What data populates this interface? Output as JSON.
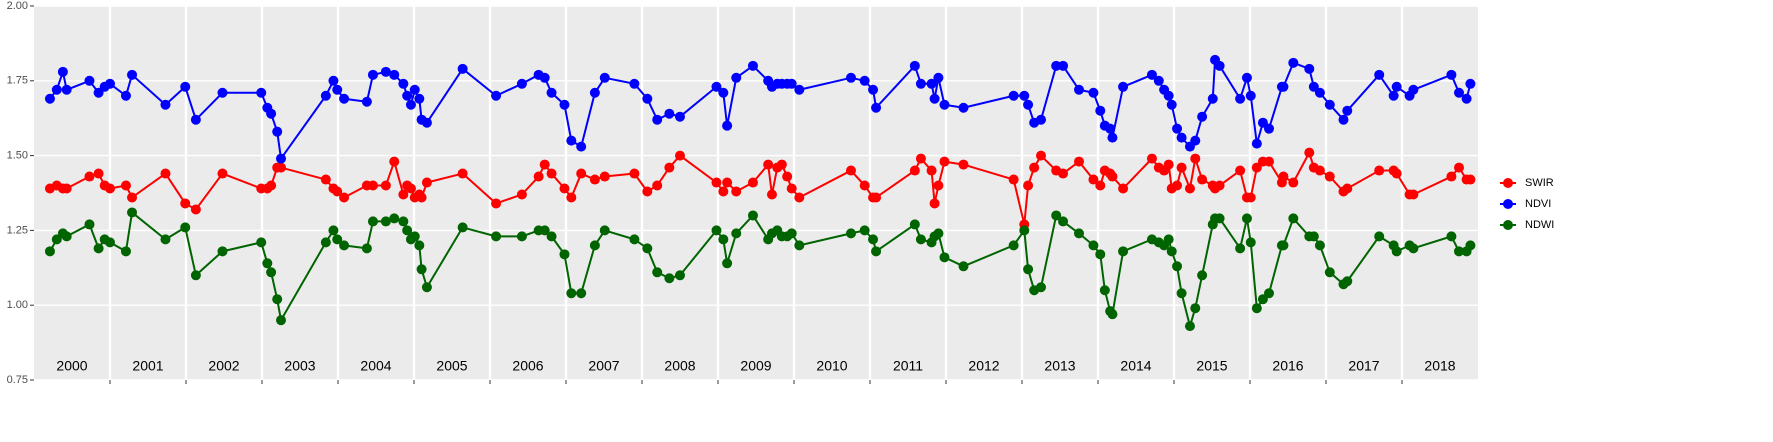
{
  "chart_data": {
    "type": "line",
    "x": [
      2000.21,
      2000.3,
      2000.38,
      2000.43,
      2000.73,
      2000.85,
      2000.93,
      2001.0,
      2001.21,
      2001.29,
      2001.73,
      2001.99,
      2002.13,
      2002.48,
      2002.99,
      2003.07,
      2003.12,
      2003.2,
      2003.25,
      2003.84,
      2003.94,
      2003.99,
      2004.08,
      2004.38,
      2004.46,
      2004.63,
      2004.74,
      2004.86,
      2004.91,
      2004.96,
      2005.01,
      2005.07,
      2005.1,
      2005.17,
      2005.64,
      2006.08,
      2006.42,
      2006.64,
      2006.72,
      2006.81,
      2006.98,
      2007.07,
      2007.2,
      2007.38,
      2007.51,
      2007.9,
      2008.07,
      2008.2,
      2008.36,
      2008.5,
      2008.98,
      2009.07,
      2009.12,
      2009.24,
      2009.46,
      2009.66,
      2009.71,
      2009.78,
      2009.84,
      2009.91,
      2009.97,
      2010.07,
      2010.75,
      2010.93,
      2011.04,
      2011.08,
      2011.59,
      2011.67,
      2011.81,
      2011.85,
      2011.9,
      2011.98,
      2012.23,
      2012.89,
      2013.03,
      2013.08,
      2013.16,
      2013.25,
      2013.45,
      2013.54,
      2013.75,
      2013.94,
      2014.03,
      2014.09,
      2014.16,
      2014.19,
      2014.33,
      2014.71,
      2014.8,
      2014.87,
      2014.93,
      2014.97,
      2015.04,
      2015.1,
      2015.21,
      2015.28,
      2015.37,
      2015.51,
      2015.54,
      2015.6,
      2015.87,
      2015.96,
      2016.01,
      2016.09,
      2016.17,
      2016.25,
      2016.42,
      2016.44,
      2016.57,
      2016.78,
      2016.84,
      2016.92,
      2017.05,
      2017.23,
      2017.28,
      2017.7,
      2017.89,
      2017.93,
      2018.1,
      2018.15,
      2018.65,
      2018.75,
      2018.85,
      2018.9
    ],
    "series": [
      {
        "name": "SWIR",
        "color": "#ff0000",
        "values": [
          1.39,
          1.4,
          1.39,
          1.39,
          1.43,
          1.44,
          1.4,
          1.39,
          1.4,
          1.36,
          1.44,
          1.34,
          1.32,
          1.44,
          1.39,
          1.39,
          1.4,
          1.46,
          1.46,
          1.42,
          1.39,
          1.38,
          1.36,
          1.4,
          1.4,
          1.4,
          1.48,
          1.37,
          1.4,
          1.39,
          1.36,
          1.37,
          1.36,
          1.41,
          1.44,
          1.34,
          1.37,
          1.43,
          1.47,
          1.44,
          1.39,
          1.36,
          1.44,
          1.42,
          1.43,
          1.44,
          1.38,
          1.4,
          1.46,
          1.5,
          1.41,
          1.38,
          1.41,
          1.38,
          1.41,
          1.47,
          1.37,
          1.46,
          1.47,
          1.43,
          1.39,
          1.36,
          1.45,
          1.4,
          1.36,
          1.36,
          1.45,
          1.49,
          1.45,
          1.34,
          1.4,
          1.48,
          1.47,
          1.42,
          1.27,
          1.4,
          1.46,
          1.5,
          1.45,
          1.44,
          1.48,
          1.42,
          1.4,
          1.45,
          1.44,
          1.43,
          1.39,
          1.49,
          1.46,
          1.45,
          1.47,
          1.39,
          1.4,
          1.46,
          1.39,
          1.49,
          1.42,
          1.4,
          1.39,
          1.4,
          1.45,
          1.36,
          1.36,
          1.46,
          1.48,
          1.48,
          1.41,
          1.43,
          1.41,
          1.51,
          1.46,
          1.45,
          1.43,
          1.38,
          1.39,
          1.45,
          1.45,
          1.44,
          1.37,
          1.37,
          1.43,
          1.46,
          1.42,
          1.42
        ]
      },
      {
        "name": "NDVI",
        "color": "#0000ff",
        "values": [
          1.69,
          1.72,
          1.78,
          1.72,
          1.75,
          1.71,
          1.73,
          1.74,
          1.7,
          1.77,
          1.67,
          1.73,
          1.62,
          1.71,
          1.71,
          1.66,
          1.64,
          1.58,
          1.49,
          1.7,
          1.75,
          1.72,
          1.69,
          1.68,
          1.77,
          1.78,
          1.77,
          1.74,
          1.7,
          1.67,
          1.72,
          1.69,
          1.62,
          1.61,
          1.79,
          1.7,
          1.74,
          1.77,
          1.76,
          1.71,
          1.67,
          1.55,
          1.53,
          1.71,
          1.76,
          1.74,
          1.69,
          1.62,
          1.64,
          1.63,
          1.73,
          1.71,
          1.6,
          1.76,
          1.8,
          1.75,
          1.73,
          1.74,
          1.74,
          1.74,
          1.74,
          1.72,
          1.76,
          1.75,
          1.72,
          1.66,
          1.8,
          1.74,
          1.74,
          1.69,
          1.76,
          1.67,
          1.66,
          1.7,
          1.7,
          1.67,
          1.61,
          1.62,
          1.8,
          1.8,
          1.72,
          1.71,
          1.65,
          1.6,
          1.59,
          1.56,
          1.73,
          1.77,
          1.75,
          1.72,
          1.7,
          1.67,
          1.59,
          1.56,
          1.53,
          1.55,
          1.63,
          1.69,
          1.82,
          1.8,
          1.69,
          1.76,
          1.7,
          1.54,
          1.61,
          1.59,
          1.73,
          1.73,
          1.81,
          1.79,
          1.73,
          1.71,
          1.67,
          1.62,
          1.65,
          1.77,
          1.7,
          1.73,
          1.7,
          1.72,
          1.77,
          1.71,
          1.69,
          1.74
        ]
      },
      {
        "name": "NDWI",
        "color": "#006400",
        "values": [
          1.18,
          1.22,
          1.24,
          1.23,
          1.27,
          1.19,
          1.22,
          1.21,
          1.18,
          1.31,
          1.22,
          1.26,
          1.1,
          1.18,
          1.21,
          1.14,
          1.11,
          1.02,
          0.95,
          1.21,
          1.25,
          1.22,
          1.2,
          1.19,
          1.28,
          1.28,
          1.29,
          1.28,
          1.25,
          1.22,
          1.23,
          1.2,
          1.12,
          1.06,
          1.26,
          1.23,
          1.23,
          1.25,
          1.25,
          1.23,
          1.17,
          1.04,
          1.04,
          1.2,
          1.25,
          1.22,
          1.19,
          1.11,
          1.09,
          1.1,
          1.25,
          1.22,
          1.14,
          1.24,
          1.3,
          1.22,
          1.24,
          1.25,
          1.23,
          1.23,
          1.24,
          1.2,
          1.24,
          1.25,
          1.22,
          1.18,
          1.27,
          1.22,
          1.21,
          1.23,
          1.24,
          1.16,
          1.13,
          1.2,
          1.25,
          1.12,
          1.05,
          1.06,
          1.3,
          1.28,
          1.24,
          1.2,
          1.17,
          1.05,
          0.98,
          0.97,
          1.18,
          1.22,
          1.21,
          1.2,
          1.22,
          1.18,
          1.13,
          1.04,
          0.93,
          0.99,
          1.1,
          1.27,
          1.29,
          1.29,
          1.19,
          1.29,
          1.21,
          0.99,
          1.02,
          1.04,
          1.2,
          1.2,
          1.29,
          1.23,
          1.23,
          1.2,
          1.11,
          1.07,
          1.08,
          1.23,
          1.2,
          1.18,
          1.2,
          1.19,
          1.23,
          1.18,
          1.18,
          1.2
        ]
      }
    ],
    "xlim": [
      2000,
      2019
    ],
    "xticks": [
      2001,
      2002,
      2003,
      2004,
      2005,
      2006,
      2007,
      2008,
      2009,
      2010,
      2011,
      2012,
      2013,
      2014,
      2015,
      2016,
      2017,
      2018
    ],
    "year_labels": [
      "2000",
      "2001",
      "2002",
      "2003",
      "2004",
      "2005",
      "2006",
      "2007",
      "2008",
      "2009",
      "2010",
      "2011",
      "2012",
      "2013",
      "2014",
      "2015",
      "2016",
      "2017",
      "2018"
    ],
    "ylim": [
      0.75,
      2.0
    ],
    "yticks": [
      {
        "value": 0.75,
        "label": "0.75"
      },
      {
        "value": 1.0,
        "label": "1.00"
      },
      {
        "value": 1.25,
        "label": "1.25"
      },
      {
        "value": 1.5,
        "label": "1.50"
      },
      {
        "value": 1.75,
        "label": "1.75"
      },
      {
        "value": 2.0,
        "label": "2.00"
      }
    ],
    "grid": true,
    "legend": "right"
  }
}
